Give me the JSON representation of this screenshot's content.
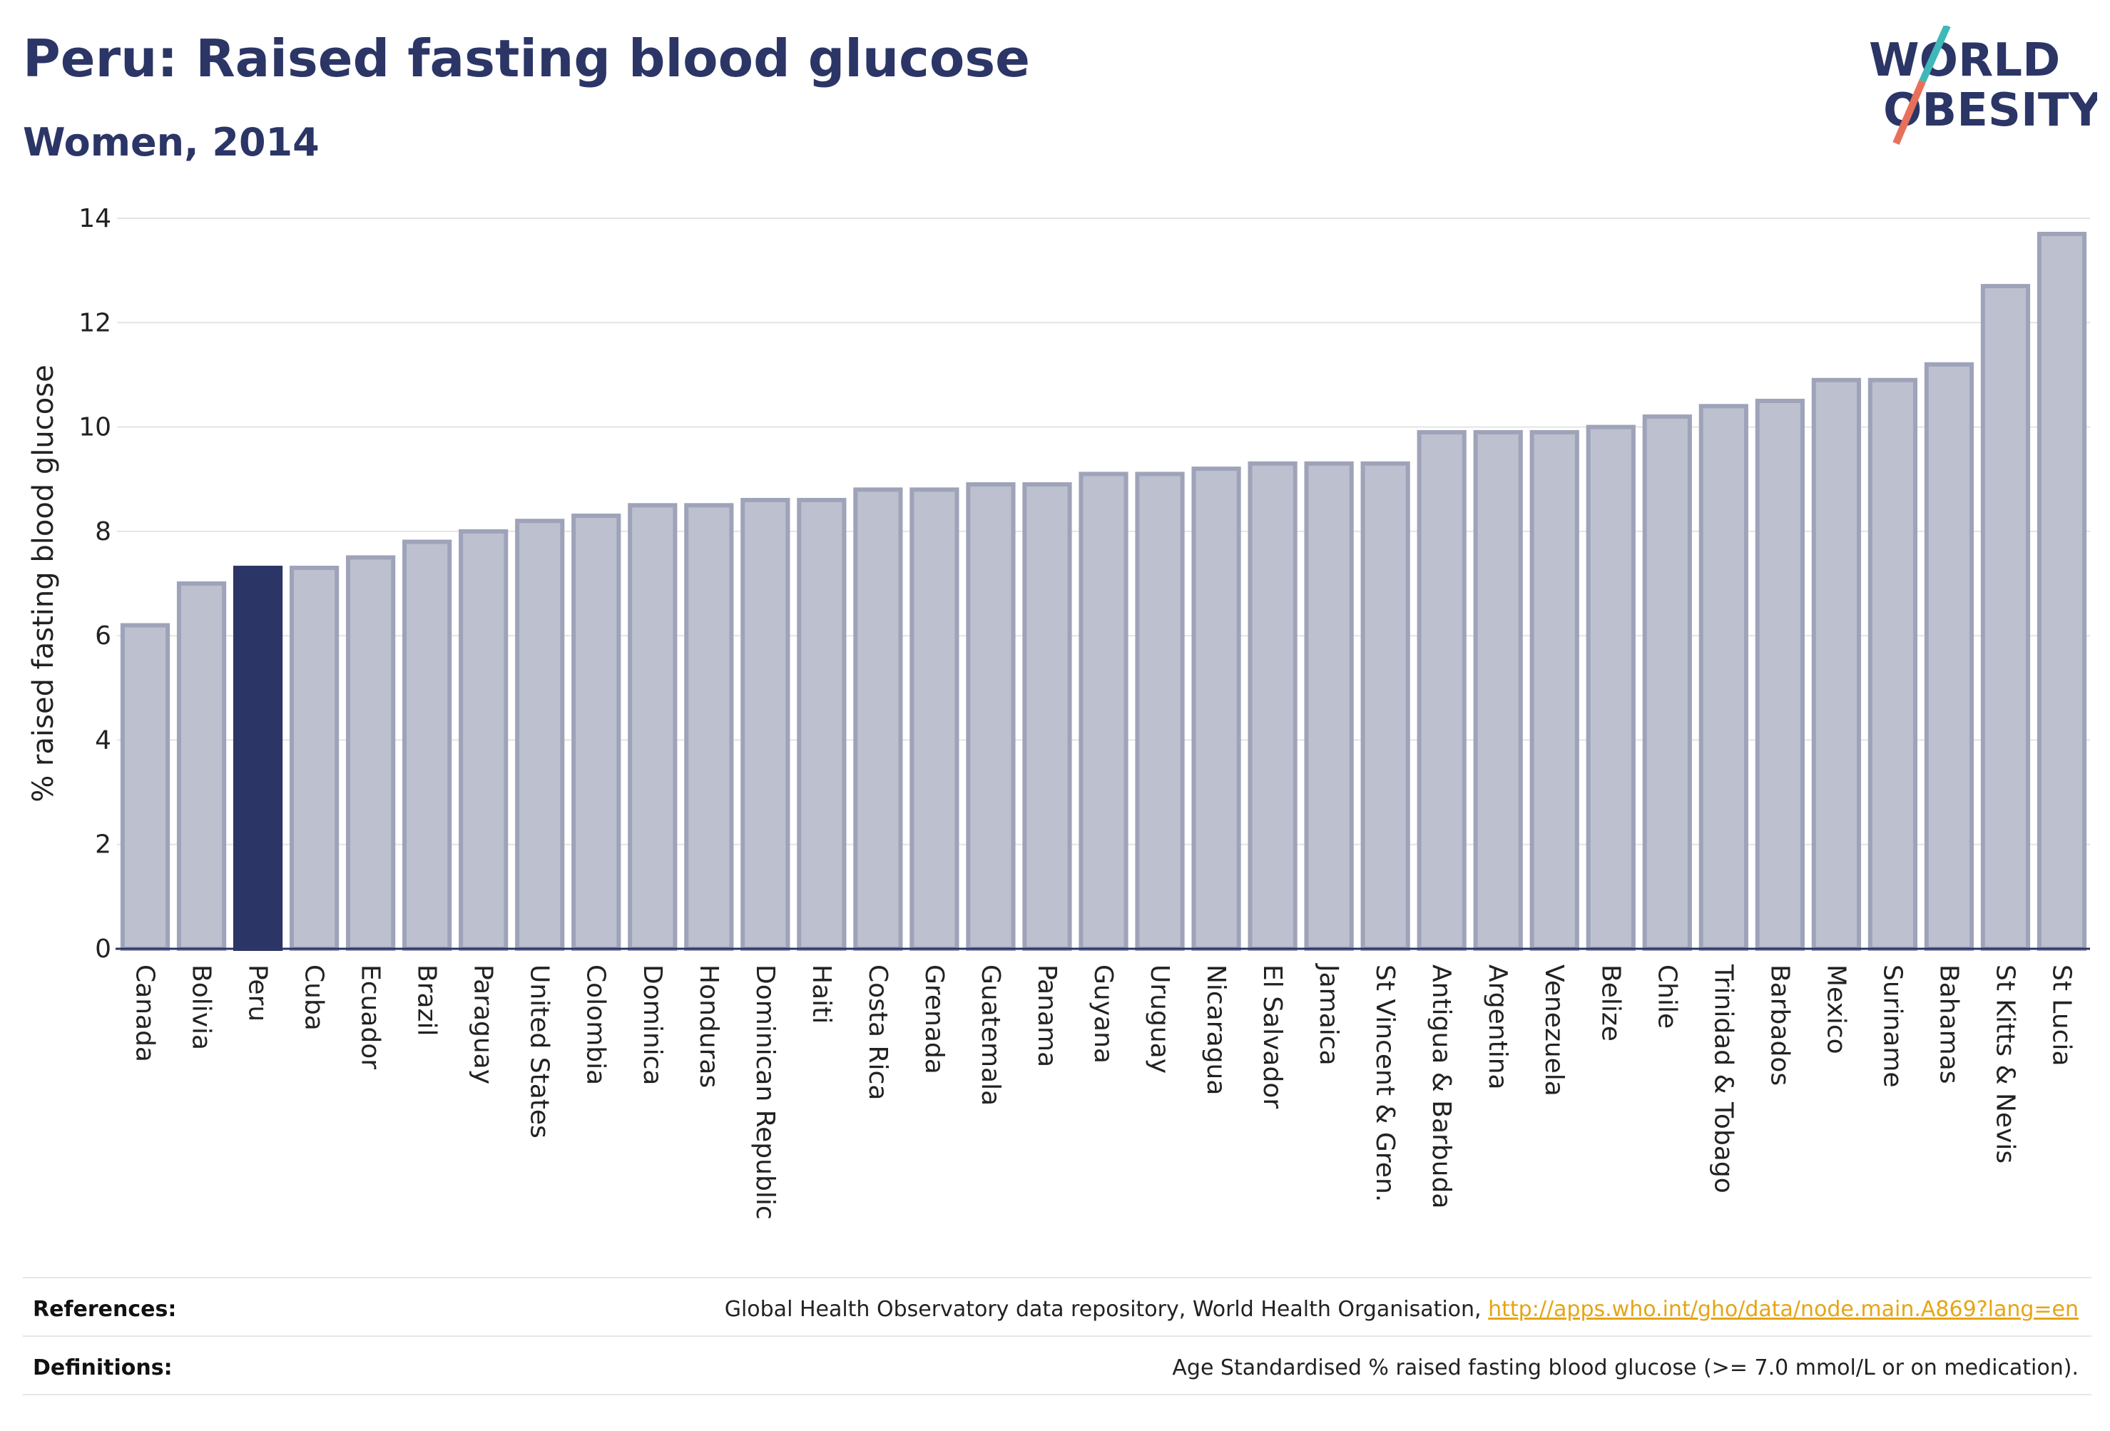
{
  "title": "Peru: Raised fasting blood glucose",
  "subtitle": "Women, 2014",
  "logo": {
    "line1": "WORLD",
    "line2": "OBESITY",
    "slash_colors": [
      "#3fb8b8",
      "#e8705a"
    ]
  },
  "colors": {
    "bar": "#bcc0cf",
    "bar_border": "#9ea3b9",
    "highlight": "#2b3566",
    "text": "#222222",
    "grid": "#e4e4e4"
  },
  "chart_data": {
    "type": "bar",
    "ylabel": "% raised fasting blood glucose",
    "ylim": [
      0,
      14
    ],
    "yticks": [
      0,
      2,
      4,
      6,
      8,
      10,
      12,
      14
    ],
    "grid": true,
    "highlight": "Peru",
    "categories": [
      "Canada",
      "Bolivia",
      "Peru",
      "Cuba",
      "Ecuador",
      "Brazil",
      "Paraguay",
      "United States",
      "Colombia",
      "Dominica",
      "Honduras",
      "Dominican Republic",
      "Haiti",
      "Costa Rica",
      "Grenada",
      "Guatemala",
      "Panama",
      "Guyana",
      "Uruguay",
      "Nicaragua",
      "El Salvador",
      "Jamaica",
      "St Vincent & Gren.",
      "Antigua & Barbuda",
      "Argentina",
      "Venezuela",
      "Belize",
      "Chile",
      "Trinidad & Tobago",
      "Barbados",
      "Mexico",
      "Suriname",
      "Bahamas",
      "St Kitts & Nevis",
      "St Lucia"
    ],
    "values": [
      6.2,
      7.0,
      7.3,
      7.3,
      7.5,
      7.8,
      8.0,
      8.2,
      8.3,
      8.5,
      8.5,
      8.6,
      8.6,
      8.8,
      8.8,
      8.9,
      8.9,
      9.1,
      9.1,
      9.2,
      9.3,
      9.3,
      9.3,
      9.9,
      9.9,
      9.9,
      10.0,
      10.2,
      10.4,
      10.5,
      10.9,
      10.9,
      11.2,
      12.7,
      13.7
    ]
  },
  "footer": {
    "references_label": "References:",
    "references_text": "Global Health Observatory data repository, World Health Organisation,",
    "references_link": "http://apps.who.int/gho/data/node.main.A869?lang=en",
    "definitions_label": "Definitions:",
    "definitions_text": "Age Standardised % raised fasting blood glucose (>= 7.0 mmol/L or on medication)."
  }
}
